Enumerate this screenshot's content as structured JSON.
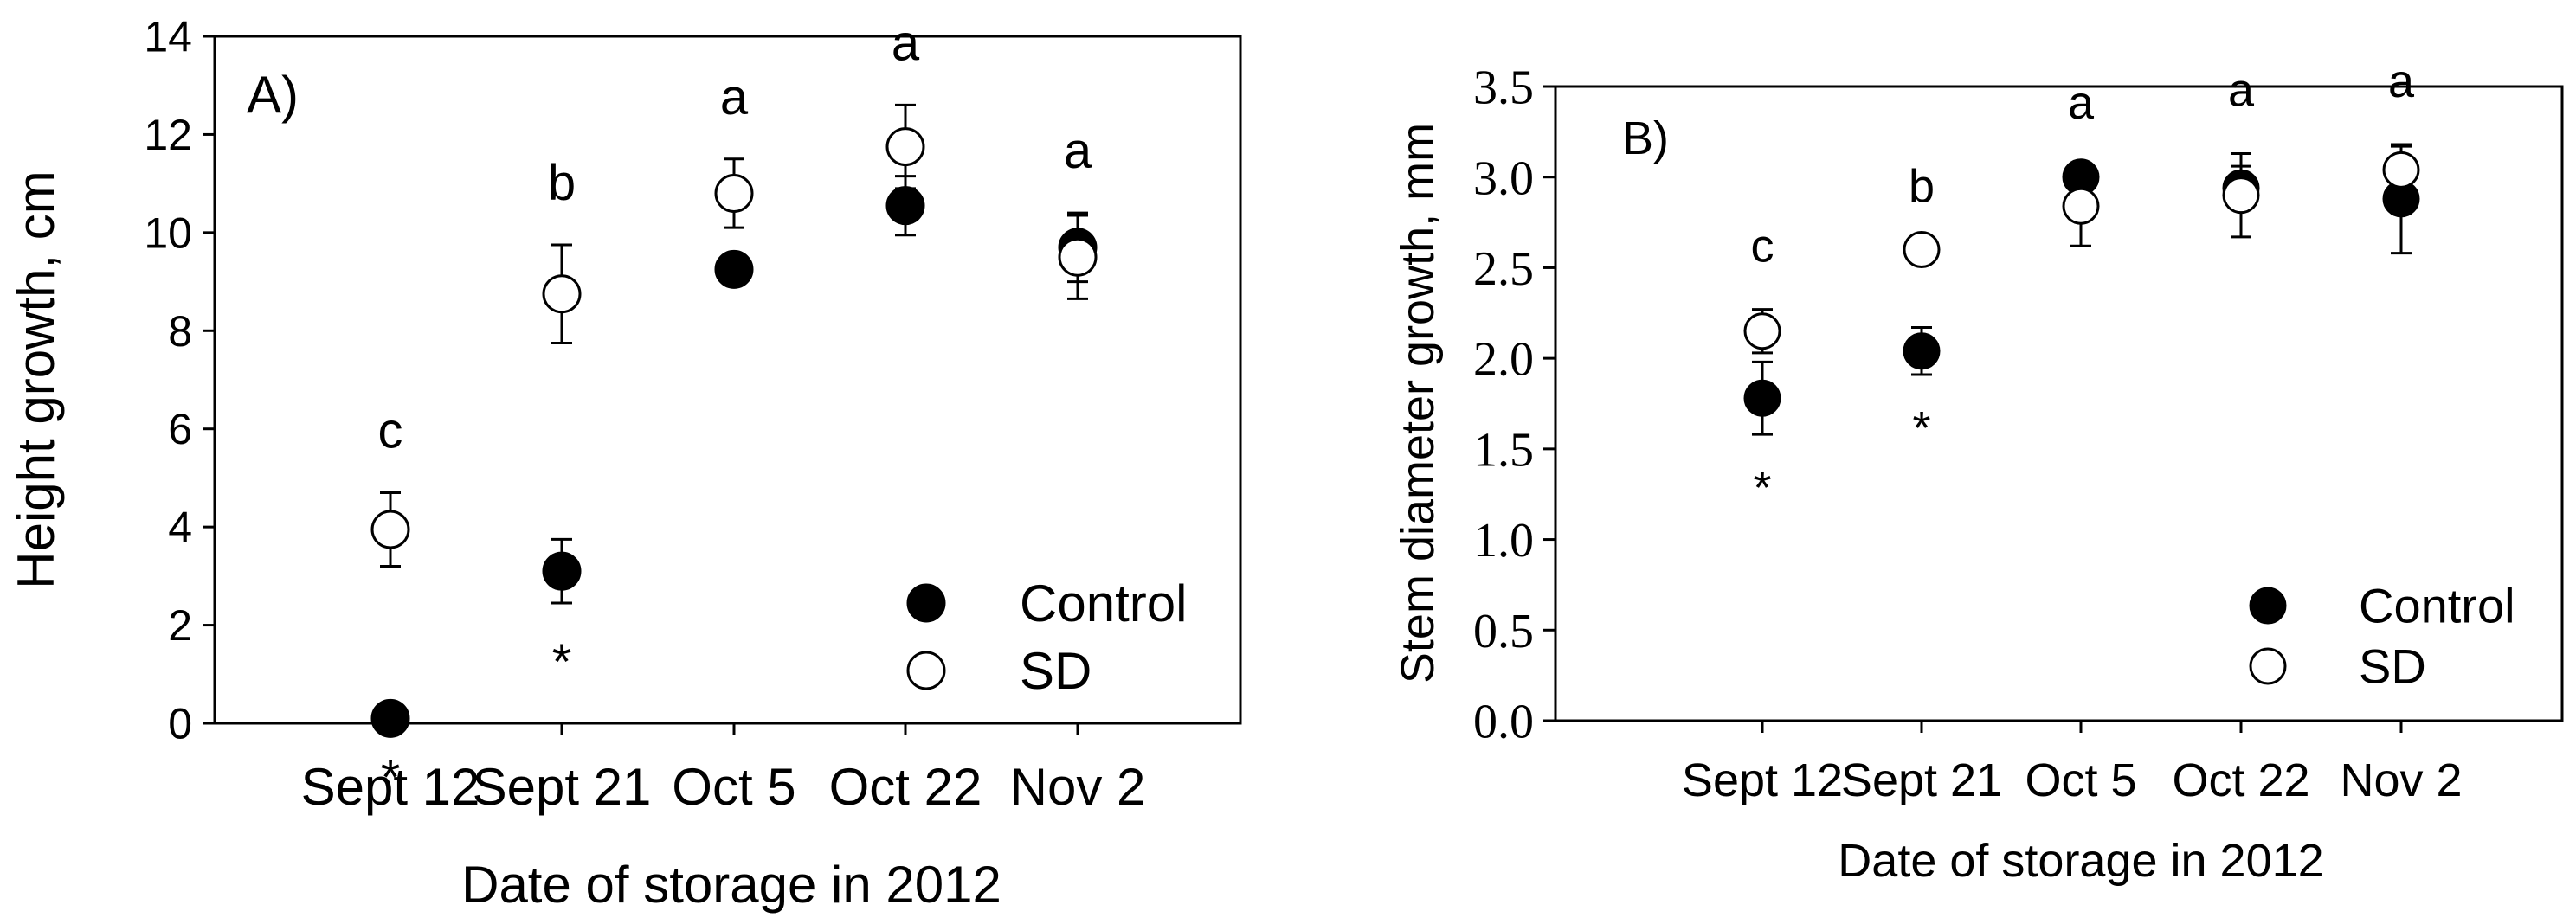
{
  "chart_data": [
    {
      "type": "scatter",
      "panel_label": "A)",
      "xlabel": "Date of storage in 2012",
      "ylabel": "Height growth, cm",
      "categories": [
        "Sept 12",
        "Sept 21",
        "Oct 5",
        "Oct 22",
        "Nov 2"
      ],
      "ylim": [
        0,
        14
      ],
      "yticks": [
        "0",
        "2",
        "4",
        "6",
        "8",
        "10",
        "12",
        "14"
      ],
      "series": [
        {
          "name": "Control",
          "marker": "filled",
          "values": [
            0.1,
            3.1,
            9.25,
            10.55,
            9.7
          ],
          "errors": [
            0,
            0.65,
            0,
            0.6,
            0.7
          ]
        },
        {
          "name": "SD",
          "marker": "open",
          "values": [
            3.95,
            8.75,
            10.8,
            11.75,
            9.5
          ],
          "errors": [
            0.75,
            1.0,
            0.7,
            0.85,
            0.85
          ]
        }
      ],
      "letters": [
        "c",
        "b",
        "a",
        "a",
        "a"
      ],
      "asterisks": [
        "*",
        "*",
        "",
        "",
        ""
      ],
      "legend_position": "bottom-right",
      "grid": false
    },
    {
      "type": "scatter",
      "panel_label": "B)",
      "xlabel": "Date of storage in 2012",
      "ylabel": "Stem diameter growth, mm",
      "categories": [
        "Sept 12",
        "Sept 21",
        "Oct 5",
        "Oct 22",
        "Nov 2"
      ],
      "ylim": [
        0,
        3.5
      ],
      "yticks": [
        "0.0",
        "0.5",
        "1.0",
        "1.5",
        "2.0",
        "2.5",
        "3.0",
        "3.5"
      ],
      "series": [
        {
          "name": "Control",
          "marker": "filled",
          "values": [
            1.78,
            2.04,
            3.0,
            2.94,
            2.88
          ],
          "errors": [
            0.2,
            0.13,
            0,
            0.12,
            0.3
          ]
        },
        {
          "name": "SD",
          "marker": "open",
          "values": [
            2.15,
            2.6,
            2.84,
            2.9,
            3.04
          ],
          "errors": [
            0.12,
            0,
            0.22,
            0.23,
            0.13
          ]
        }
      ],
      "letters": [
        "c",
        "b",
        "a",
        "a",
        "a"
      ],
      "asterisks": [
        "*",
        "*",
        "",
        "",
        ""
      ],
      "legend_position": "bottom-right",
      "grid": false
    }
  ]
}
